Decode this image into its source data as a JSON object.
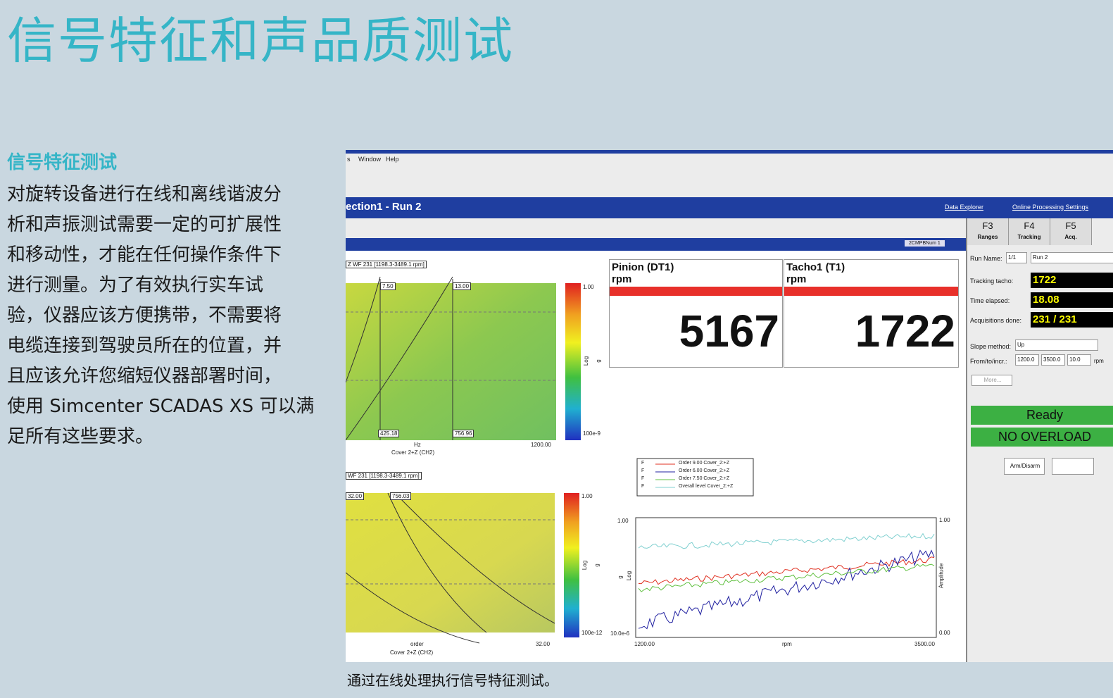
{
  "header": {
    "title": "信号特征和声品质测试"
  },
  "section": {
    "heading": "信号特征测试",
    "lines": [
      "对旋转设备进行在线和离线谐波分",
      "析和声振测试需要一定的可扩展性",
      "和移动性，才能在任何操作条件下",
      "进行测量。为了有效执行实车试",
      "验，仪器应该方便携带，不需要将",
      "电缆连接到驾驶员所在的位置，并",
      "且应该允许您缩短仪器部署时间，",
      "使用 Simcenter SCADAS XS 可以满",
      "足所有这些要求。"
    ]
  },
  "figure": {
    "caption": "通过在线处理执行信号特征测试。",
    "screenshot": {
      "menu": [
        "s",
        "Window",
        "Help"
      ],
      "window_title": "ection1  -  Run 2",
      "links": [
        "Data Explorer",
        "Online Processing Settings"
      ],
      "dropdown": "2CMPBNum 1",
      "displays": [
        {
          "name": "Pinion (DT1)",
          "unit": "rpm",
          "value": "5167"
        },
        {
          "name": "Tacho1 (T1)",
          "unit": "rpm",
          "value": "1722"
        }
      ],
      "spectrogram_top": {
        "title": "Z WF 231 [1198.3-3489.1 rpm]",
        "markers": [
          "7.50",
          "13.00"
        ],
        "cursors": [
          "425.18",
          "756.96"
        ],
        "x_unit": "Hz",
        "x_max": "1200.00",
        "x_label": "Cover 2+Z (CH2)",
        "scale_max": "1.00",
        "scale_min": "100e-9",
        "scale_type": "Log",
        "scale_unit": "g"
      },
      "spectrogram_bottom": {
        "title": "WF 231 [1198.3-3489.1 rpm]",
        "markers": [
          "32.00",
          "756.03"
        ],
        "x_unit": "order",
        "x_max": "32.00",
        "x_label": "Cover 2+Z (CH2)",
        "scale_max": "1.00",
        "scale_min": "100e-12",
        "scale_type": "Log",
        "scale_unit": "g"
      },
      "order_chart": {
        "legend": [
          {
            "flag": "F",
            "name": "Order 9.00 Cover_2:+Z",
            "color": "#e03020"
          },
          {
            "flag": "F",
            "name": "Order 6.00 Cover_2:+Z",
            "color": "#2020a0"
          },
          {
            "flag": "F",
            "name": "Order 7.50 Cover_2:+Z",
            "color": "#60c040"
          },
          {
            "flag": "F",
            "name": "Overall level Cover_2:+Z",
            "color": "#80d0d0"
          }
        ],
        "y_max": "1.00",
        "y_min": "10.0e-6",
        "x_min": "1200.00",
        "x_max": "3500.00",
        "x_label": "rpm",
        "y_label": "g",
        "y_type": "Log",
        "y2_max": "1.00",
        "y2_min": "0.00",
        "y2_label": "Amplitude"
      },
      "tabs": [
        {
          "key": "F3",
          "label": "Ranges"
        },
        {
          "key": "F4",
          "label": "Tracking"
        },
        {
          "key": "F5",
          "label": "Acq."
        }
      ],
      "run_name": {
        "label": "Run Name:",
        "index": "1/1",
        "value": "Run 2"
      },
      "fields": [
        {
          "label": "Tracking tacho:",
          "value": "1722"
        },
        {
          "label": "Time elapsed:",
          "value": "18.08"
        },
        {
          "label": "Acquisitions done:",
          "value": "231 / 231"
        }
      ],
      "slope": {
        "label": "Slope method:",
        "value": "Up"
      },
      "range": {
        "label": "From/to/incr.:",
        "values": [
          "1200.0",
          "3500.0",
          "10.0"
        ],
        "unit": "rpm"
      },
      "more": "More...",
      "status": [
        "Ready",
        "NO OVERLOAD"
      ],
      "arm_button": "Arm/Disarm"
    }
  }
}
